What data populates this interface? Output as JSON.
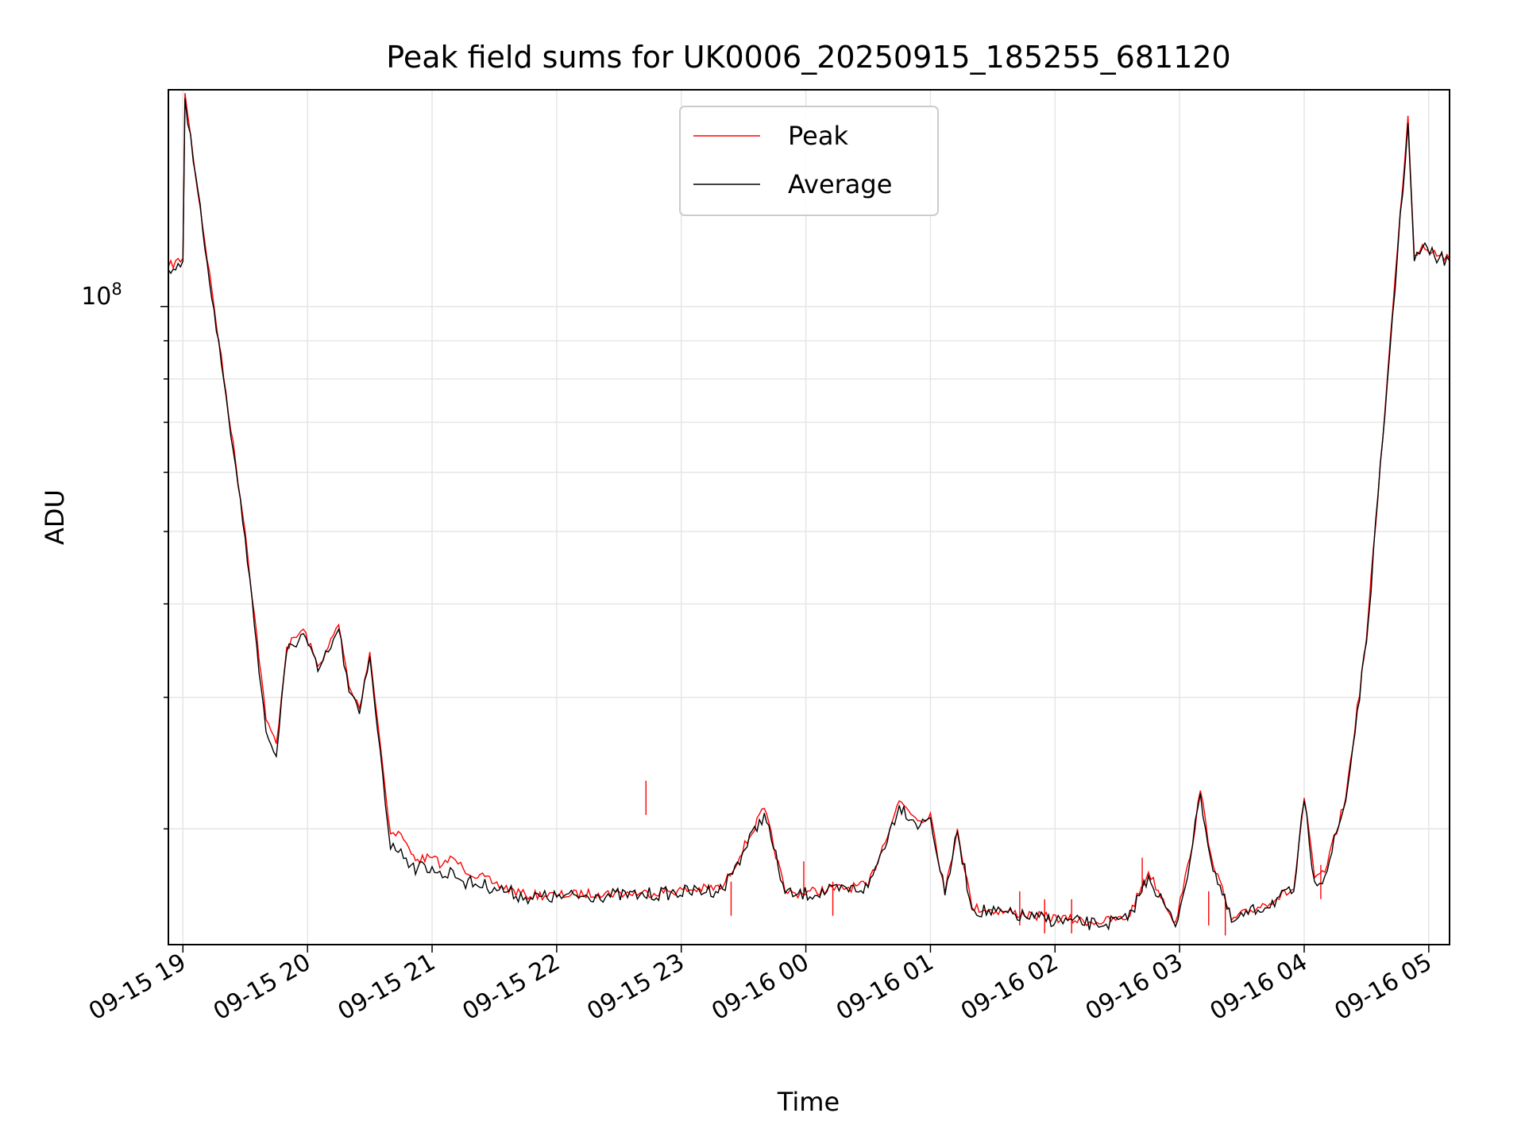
{
  "chart_data": {
    "type": "line",
    "title": "Peak field sums for UK0006_20250915_185255_681120",
    "xlabel": "Time",
    "ylabel": "ADU",
    "yscale": "log",
    "grid": true,
    "legend_position": "upper-center",
    "xlim": [
      "2025-09-15 18:53",
      "2025-09-16 05:10"
    ],
    "ylim": [
      14000000,
      195000000
    ],
    "x_ticks": [
      "09-15 19",
      "09-15 20",
      "09-15 21",
      "09-15 22",
      "09-15 23",
      "09-16 00",
      "09-16 01",
      "09-16 02",
      "09-16 03",
      "09-16 04",
      "09-16 05"
    ],
    "y_tick_label": {
      "base": "10",
      "exponent": "8"
    },
    "series": [
      {
        "name": "Peak",
        "color": "#ff0000",
        "x": [
          "2025-09-15 18:53",
          "2025-09-15 19:00",
          "2025-09-15 19:01",
          "2025-09-15 19:05",
          "2025-09-15 19:15",
          "2025-09-15 19:30",
          "2025-09-15 19:40",
          "2025-09-15 19:45",
          "2025-09-15 19:50",
          "2025-09-15 19:58",
          "2025-09-15 20:05",
          "2025-09-15 20:10",
          "2025-09-15 20:15",
          "2025-09-15 20:20",
          "2025-09-15 20:25",
          "2025-09-15 20:30",
          "2025-09-15 20:35",
          "2025-09-15 20:40",
          "2025-09-15 20:45",
          "2025-09-15 20:50",
          "2025-09-15 20:53",
          "2025-09-15 21:00",
          "2025-09-15 21:05",
          "2025-09-15 21:10",
          "2025-09-15 21:15",
          "2025-09-15 21:30",
          "2025-09-15 21:45",
          "2025-09-15 22:00",
          "2025-09-15 22:20",
          "2025-09-15 22:40",
          "2025-09-15 23:20",
          "2025-09-15 23:40",
          "2025-09-15 23:50",
          "2025-09-15 23:55",
          "2025-09-16 00:30",
          "2025-09-16 00:45",
          "2025-09-16 00:55",
          "2025-09-16 01:00",
          "2025-09-16 01:07",
          "2025-09-16 01:13",
          "2025-09-16 01:20",
          "2025-09-16 01:50",
          "2025-09-16 02:20",
          "2025-09-16 02:35",
          "2025-09-16 02:45",
          "2025-09-16 02:58",
          "2025-09-16 03:05",
          "2025-09-16 03:10",
          "2025-09-16 03:15",
          "2025-09-16 03:25",
          "2025-09-16 03:55",
          "2025-09-16 04:00",
          "2025-09-16 04:05",
          "2025-09-16 04:10",
          "2025-09-16 04:20",
          "2025-09-16 04:30",
          "2025-09-16 04:40",
          "2025-09-16 04:45",
          "2025-09-16 04:50",
          "2025-09-16 04:53",
          "2025-09-16 04:57",
          "2025-09-16 05:05",
          "2025-09-16 05:10"
        ],
        "values": [
          113000000,
          116000000,
          193000000,
          158000000,
          100000000,
          50000000,
          28000000,
          26000000,
          35000000,
          37000000,
          33000000,
          35000000,
          37500000,
          31000000,
          29000000,
          34500000,
          26000000,
          19700000,
          19700000,
          18500000,
          18200000,
          18300000,
          17900000,
          18300000,
          17700000,
          16900000,
          16300000,
          16300000,
          16400000,
          16400000,
          16700000,
          21300000,
          16500000,
          16400000,
          16800000,
          21800000,
          20500000,
          21000000,
          16400000,
          20000000,
          15700000,
          15300000,
          15000000,
          15200000,
          17500000,
          15000000,
          18300000,
          22500000,
          18500000,
          15100000,
          16600000,
          22000000,
          17200000,
          17500000,
          22000000,
          36000000,
          80000000,
          120000000,
          180000000,
          117000000,
          121000000,
          117000000,
          116000000
        ],
        "spikes": [
          {
            "x": "2025-09-15 22:43",
            "value": 23200000
          },
          {
            "x": "2025-09-15 23:24",
            "value": 17000000
          },
          {
            "x": "2025-09-15 23:59",
            "value": 18100000
          },
          {
            "x": "2025-09-16 00:13",
            "value": 17000000
          },
          {
            "x": "2025-09-16 01:43",
            "value": 16500000
          },
          {
            "x": "2025-09-16 01:55",
            "value": 16100000
          },
          {
            "x": "2025-09-16 02:08",
            "value": 16100000
          },
          {
            "x": "2025-09-16 02:42",
            "value": 18300000
          },
          {
            "x": "2025-09-16 03:14",
            "value": 16500000
          },
          {
            "x": "2025-09-16 03:22",
            "value": 16000000
          },
          {
            "x": "2025-09-16 04:08",
            "value": 17900000
          }
        ]
      },
      {
        "name": "Average",
        "color": "#000000",
        "x": [
          "2025-09-15 18:53",
          "2025-09-15 19:00",
          "2025-09-15 19:01",
          "2025-09-15 19:05",
          "2025-09-15 19:15",
          "2025-09-15 19:30",
          "2025-09-15 19:40",
          "2025-09-15 19:45",
          "2025-09-15 19:50",
          "2025-09-15 19:58",
          "2025-09-15 20:05",
          "2025-09-15 20:10",
          "2025-09-15 20:15",
          "2025-09-15 20:20",
          "2025-09-15 20:25",
          "2025-09-15 20:30",
          "2025-09-15 20:35",
          "2025-09-15 20:40",
          "2025-09-15 20:45",
          "2025-09-15 20:50",
          "2025-09-15 20:53",
          "2025-09-15 21:00",
          "2025-09-15 21:05",
          "2025-09-15 21:10",
          "2025-09-15 21:15",
          "2025-09-15 21:30",
          "2025-09-15 21:45",
          "2025-09-15 22:00",
          "2025-09-15 22:20",
          "2025-09-15 22:40",
          "2025-09-15 23:20",
          "2025-09-15 23:40",
          "2025-09-15 23:50",
          "2025-09-15 23:55",
          "2025-09-16 00:30",
          "2025-09-16 00:45",
          "2025-09-16 00:55",
          "2025-09-16 01:00",
          "2025-09-16 01:07",
          "2025-09-16 01:13",
          "2025-09-16 01:20",
          "2025-09-16 01:50",
          "2025-09-16 02:20",
          "2025-09-16 02:35",
          "2025-09-16 02:45",
          "2025-09-16 02:58",
          "2025-09-16 03:05",
          "2025-09-16 03:10",
          "2025-09-16 03:15",
          "2025-09-16 03:25",
          "2025-09-16 03:55",
          "2025-09-16 04:00",
          "2025-09-16 04:05",
          "2025-09-16 04:10",
          "2025-09-16 04:20",
          "2025-09-16 04:30",
          "2025-09-16 04:40",
          "2025-09-16 04:45",
          "2025-09-16 04:50",
          "2025-09-16 04:53",
          "2025-09-16 04:57",
          "2025-09-16 05:05",
          "2025-09-16 05:10"
        ],
        "values": [
          112000000,
          115000000,
          190000000,
          156000000,
          99000000,
          49000000,
          27000000,
          25000000,
          34500000,
          36500000,
          32500000,
          34500000,
          37000000,
          30500000,
          28500000,
          34000000,
          25500000,
          18800000,
          18800000,
          17900000,
          17700000,
          17800000,
          17200000,
          17600000,
          17000000,
          16700000,
          16200000,
          16200000,
          16300000,
          16300000,
          16600000,
          21000000,
          16400000,
          16300000,
          16700000,
          21500000,
          20200000,
          20700000,
          16300000,
          19800000,
          15600000,
          15200000,
          14900000,
          15100000,
          17300000,
          14800000,
          18100000,
          22300000,
          18200000,
          15000000,
          16500000,
          21800000,
          17000000,
          17300000,
          21800000,
          35500000,
          79000000,
          118000000,
          176000000,
          115000000,
          120000000,
          116000000,
          115000000
        ]
      }
    ]
  }
}
